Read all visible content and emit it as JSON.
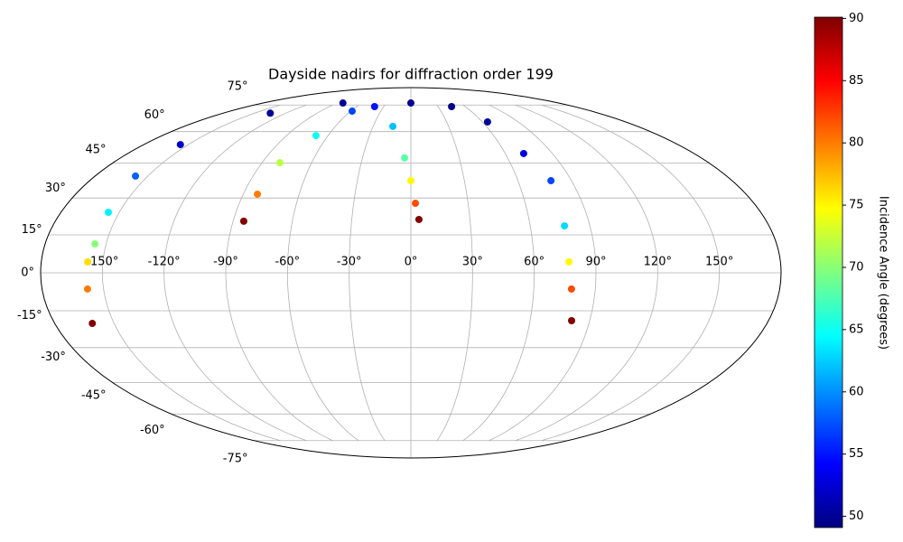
{
  "chart_data": {
    "type": "scatter",
    "projection": "mollweide",
    "title": "Dayside nadirs for diffraction order 199",
    "x": [
      -161,
      -157.8,
      -157.4,
      -155.5,
      -155.6,
      -157,
      -155.3,
      -134.8,
      -82.7,
      -40,
      -14.3,
      -3.9,
      0,
      2.4,
      4.1,
      -84.6,
      -82.4,
      -79.2,
      -68.7,
      -58.5,
      0,
      44.9,
      64.3,
      71.7,
      78.5,
      77.2,
      77,
      78.4,
      80.9
    ],
    "values": [
      -20.1,
      -6.4,
      4.3,
      11.4,
      24.1,
      39.3,
      53.6,
      70,
      76.3,
      74,
      62.7,
      47.4,
      37.3,
      27.8,
      21.2,
      20.5,
      31.6,
      45.2,
      58,
      71.2,
      76.3,
      74,
      65.1,
      49.4,
      37.3,
      18.6,
      4.3,
      -6.4,
      -19
    ],
    "c": [
      90,
      80,
      76,
      70,
      64,
      58,
      52,
      50,
      50,
      55,
      62,
      68,
      75,
      82,
      90,
      90,
      80,
      72,
      65,
      57,
      50,
      49.5,
      50,
      53,
      57,
      63,
      75,
      82,
      90
    ],
    "colormap": "jet",
    "clim": [
      49.1,
      90.1
    ],
    "cticks": [
      50,
      55,
      60,
      65,
      70,
      75,
      80,
      85,
      90
    ],
    "colorbar_label": "Incidence Angle (degrees)",
    "xlim": [
      -180,
      180
    ],
    "ylim": [
      -90,
      90
    ],
    "xticks": [
      {
        "value": -150,
        "label": "-150°"
      },
      {
        "value": -120,
        "label": "-120°"
      },
      {
        "value": -90,
        "label": "-90°"
      },
      {
        "value": -60,
        "label": "-60°"
      },
      {
        "value": -30,
        "label": "-30°"
      },
      {
        "value": 0,
        "label": "0°"
      },
      {
        "value": 30,
        "label": "30°"
      },
      {
        "value": 60,
        "label": "60°"
      },
      {
        "value": 90,
        "label": "90°"
      },
      {
        "value": 120,
        "label": "120°"
      },
      {
        "value": 150,
        "label": "150°"
      }
    ],
    "yticks": [
      {
        "value": -75,
        "label": "-75°"
      },
      {
        "value": -60,
        "label": "-60°"
      },
      {
        "value": -45,
        "label": "-45°"
      },
      {
        "value": -30,
        "label": "-30°"
      },
      {
        "value": -15,
        "label": "-15°"
      },
      {
        "value": 0,
        "label": "0°"
      },
      {
        "value": 15,
        "label": "15°"
      },
      {
        "value": 30,
        "label": "30°"
      },
      {
        "value": 45,
        "label": "45°"
      },
      {
        "value": 60,
        "label": "60°"
      },
      {
        "value": 75,
        "label": "75°"
      }
    ],
    "grid": true
  }
}
